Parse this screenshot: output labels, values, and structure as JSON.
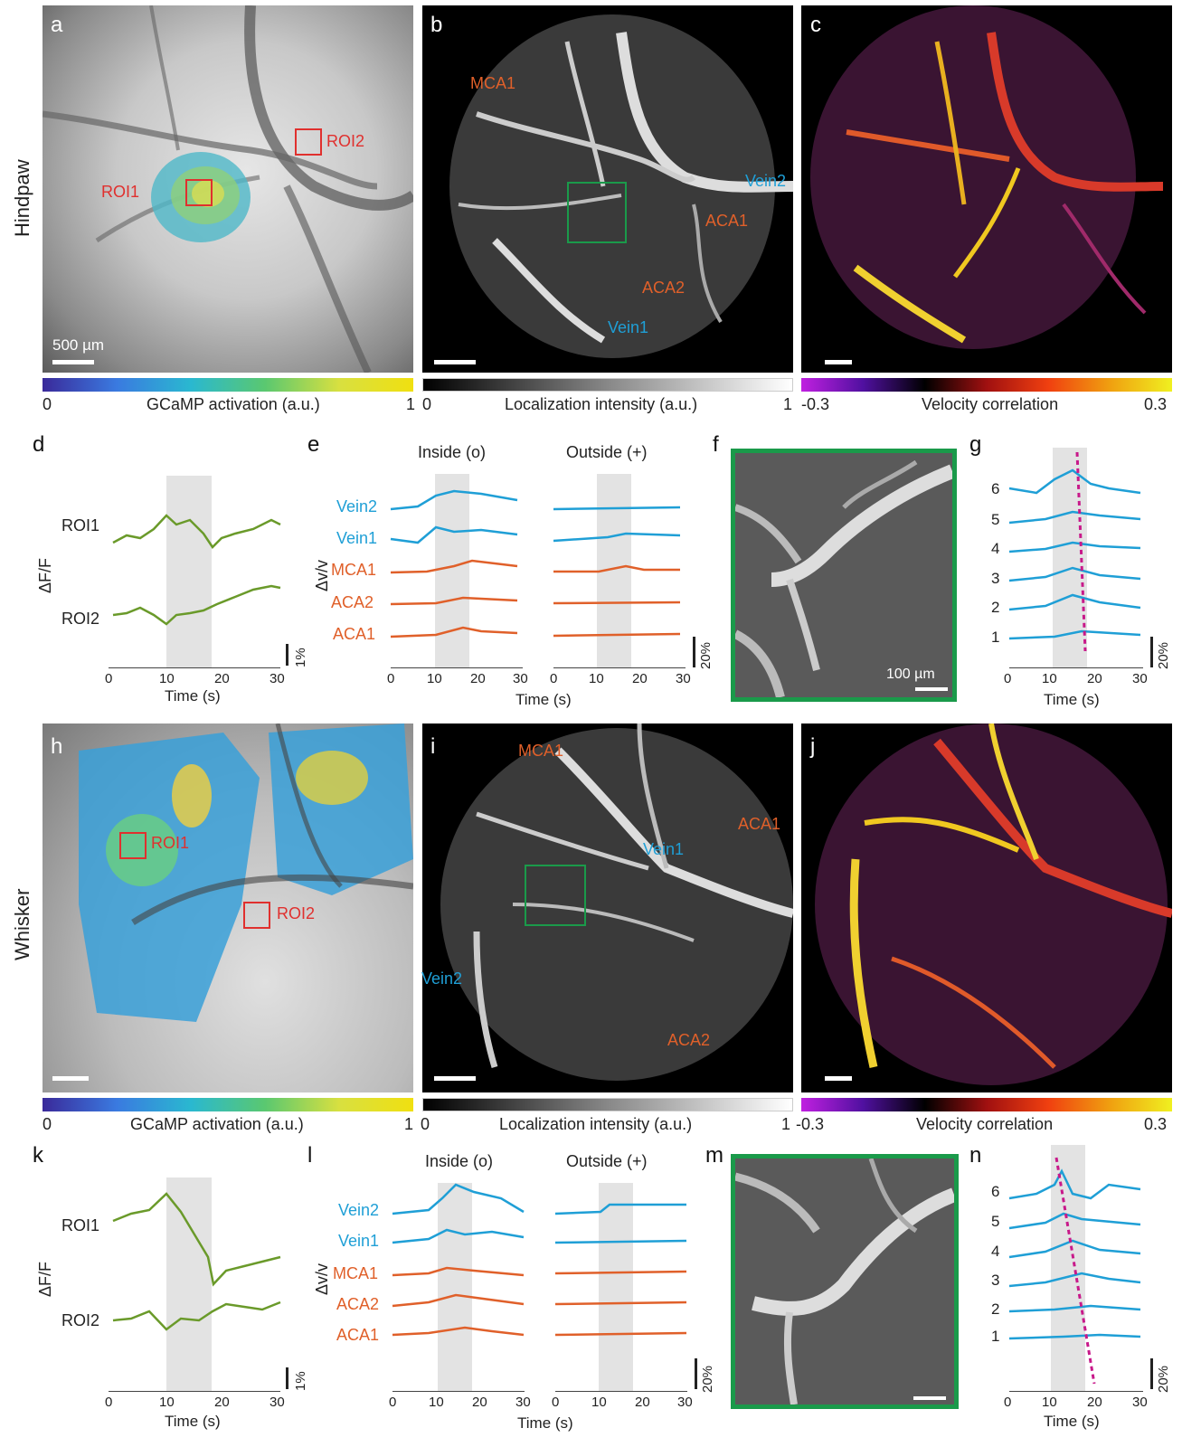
{
  "rows": {
    "hindpaw": "Hindpaw",
    "whisker": "Whisker"
  },
  "panel_letters": {
    "a": "a",
    "b": "b",
    "c": "c",
    "d": "d",
    "e": "e",
    "f": "f",
    "g": "g",
    "h": "h",
    "i": "i",
    "j": "j",
    "k": "k",
    "l": "l",
    "m": "m",
    "n": "n"
  },
  "scalebars": {
    "a": "500 µm",
    "f": "100 µm"
  },
  "roi": {
    "roi1": "ROI1",
    "roi2": "ROI2"
  },
  "vessels": {
    "mca1": "MCA1",
    "aca1": "ACA1",
    "aca2": "ACA2",
    "vein1": "Vein1",
    "vein2": "Vein2"
  },
  "colorbars": {
    "gcamp": {
      "min": "0",
      "max": "1",
      "label": "GCaMP activation (a.u.)"
    },
    "loc": {
      "min": "0",
      "max": "1",
      "label": "Localization intensity (a.u.)"
    },
    "vel": {
      "min": "-0.3",
      "max": "0.3",
      "label": "Velocity correlation"
    }
  },
  "axes": {
    "time": "Time (s)",
    "dff": "ΔF/F",
    "dvv": "Δv/v",
    "inside": "Inside (o)",
    "outside": "Outside (+)",
    "s1": "1%",
    "s20": "20%"
  },
  "colors": {
    "green": "#6a9a2a",
    "blue": "#1f9fd6",
    "orange": "#e0602a",
    "red": "#e0302e",
    "magenta": "#c8198a",
    "panelgreen": "#1a9a4a"
  },
  "chart_data": [
    {
      "panel": "d",
      "type": "line",
      "x": [
        0,
        10,
        20,
        30
      ],
      "xlabel": "Time (s)",
      "ylabel": "ΔF/F",
      "stimulus": [
        10,
        18
      ],
      "series": [
        {
          "name": "ROI1"
        },
        {
          "name": "ROI2"
        }
      ]
    },
    {
      "panel": "e",
      "type": "line",
      "x": [
        0,
        10,
        20,
        30
      ],
      "xlabel": "Time (s)",
      "ylabel": "Δv/v",
      "stimulus": [
        10,
        18
      ],
      "series": [
        {
          "name": "Vein2"
        },
        {
          "name": "Vein1"
        },
        {
          "name": "MCA1"
        },
        {
          "name": "ACA2"
        },
        {
          "name": "ACA1"
        }
      ]
    },
    {
      "panel": "g",
      "type": "line",
      "x": [
        0,
        10,
        20,
        30
      ],
      "xlabel": "Time (s)",
      "stimulus": [
        10,
        18
      ],
      "series": [
        {
          "name": "6"
        },
        {
          "name": "5"
        },
        {
          "name": "4"
        },
        {
          "name": "3"
        },
        {
          "name": "2"
        },
        {
          "name": "1"
        }
      ]
    },
    {
      "panel": "k",
      "type": "line",
      "x": [
        0,
        10,
        20,
        30
      ],
      "xlabel": "Time (s)",
      "ylabel": "ΔF/F",
      "stimulus": [
        10,
        18
      ],
      "series": [
        {
          "name": "ROI1"
        },
        {
          "name": "ROI2"
        }
      ]
    },
    {
      "panel": "l",
      "type": "line",
      "x": [
        0,
        10,
        20,
        30
      ],
      "xlabel": "Time (s)",
      "ylabel": "Δv/v",
      "stimulus": [
        10,
        18
      ],
      "series": [
        {
          "name": "Vein2"
        },
        {
          "name": "Vein1"
        },
        {
          "name": "MCA1"
        },
        {
          "name": "ACA2"
        },
        {
          "name": "ACA1"
        }
      ]
    },
    {
      "panel": "n",
      "type": "line",
      "x": [
        0,
        10,
        20,
        30
      ],
      "xlabel": "Time (s)",
      "stimulus": [
        10,
        18
      ],
      "series": [
        {
          "name": "6"
        },
        {
          "name": "5"
        },
        {
          "name": "4"
        },
        {
          "name": "3"
        },
        {
          "name": "2"
        },
        {
          "name": "1"
        }
      ]
    }
  ]
}
